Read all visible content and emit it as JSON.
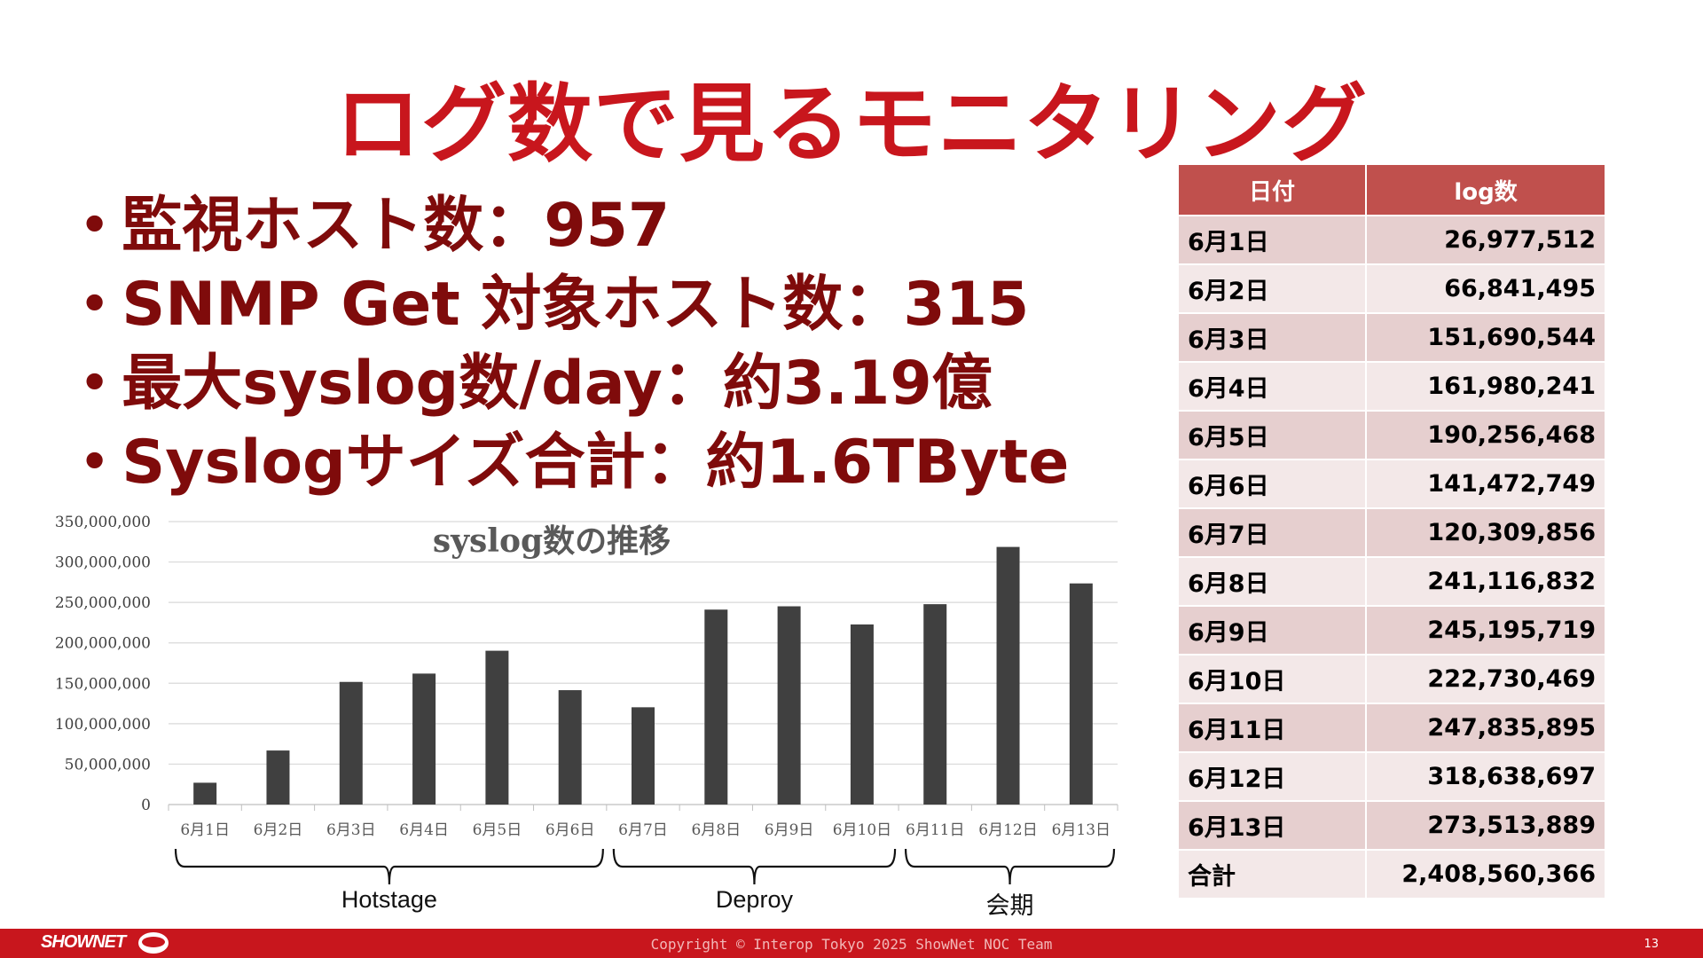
{
  "title": "ログ数で見るモニタリング",
  "bullets": [
    "監視ホスト数：957",
    "SNMP Get 対象ホスト数：315",
    "最大syslog数/day：約3.19億",
    "Syslogサイズ合計：約1.6TByte"
  ],
  "chart_data": {
    "type": "bar",
    "title": "syslog数の推移",
    "categories": [
      "6月1日",
      "6月2日",
      "6月3日",
      "6月4日",
      "6月5日",
      "6月6日",
      "6月7日",
      "6月8日",
      "6月9日",
      "6月10日",
      "6月11日",
      "6月12日",
      "6月13日"
    ],
    "values": [
      26977512,
      66841495,
      151690544,
      161980241,
      190256468,
      141472749,
      120309856,
      241116832,
      245195719,
      222730469,
      247835895,
      318638697,
      273513889
    ],
    "ylim": [
      0,
      350000000
    ],
    "yticks": [
      "0",
      "50,000,000",
      "100,000,000",
      "150,000,000",
      "200,000,000",
      "250,000,000",
      "300,000,000",
      "350,000,000"
    ],
    "grid": true,
    "bar_color": "#404040",
    "brace_groups": [
      {
        "label": "Hotstage",
        "from": 0,
        "to": 5
      },
      {
        "label": "Deproy",
        "from": 6,
        "to": 9
      },
      {
        "label": "会期",
        "from": 10,
        "to": 12
      }
    ]
  },
  "table": {
    "headers": [
      "日付",
      "log数"
    ],
    "rows": [
      [
        "6月1日",
        "26,977,512"
      ],
      [
        "6月2日",
        "66,841,495"
      ],
      [
        "6月3日",
        "151,690,544"
      ],
      [
        "6月4日",
        "161,980,241"
      ],
      [
        "6月5日",
        "190,256,468"
      ],
      [
        "6月6日",
        "141,472,749"
      ],
      [
        "6月7日",
        "120,309,856"
      ],
      [
        "6月8日",
        "241,116,832"
      ],
      [
        "6月9日",
        "245,195,719"
      ],
      [
        "6月10日",
        "222,730,469"
      ],
      [
        "6月11日",
        "247,835,895"
      ],
      [
        "6月12日",
        "318,638,697"
      ],
      [
        "6月13日",
        "273,513,889"
      ]
    ],
    "total_label": "合計",
    "total_value": "2,408,560,366"
  },
  "footer": {
    "logo": "SHOWNET",
    "copyright": "Copyright © Interop Tokyo 2025 ShowNet NOC Team",
    "page_number": "13"
  },
  "colors": {
    "title": "#c8161d",
    "bullet_text": "#7f0b0b",
    "table_header": "#c0504d",
    "footer_bar": "#c8161d"
  }
}
